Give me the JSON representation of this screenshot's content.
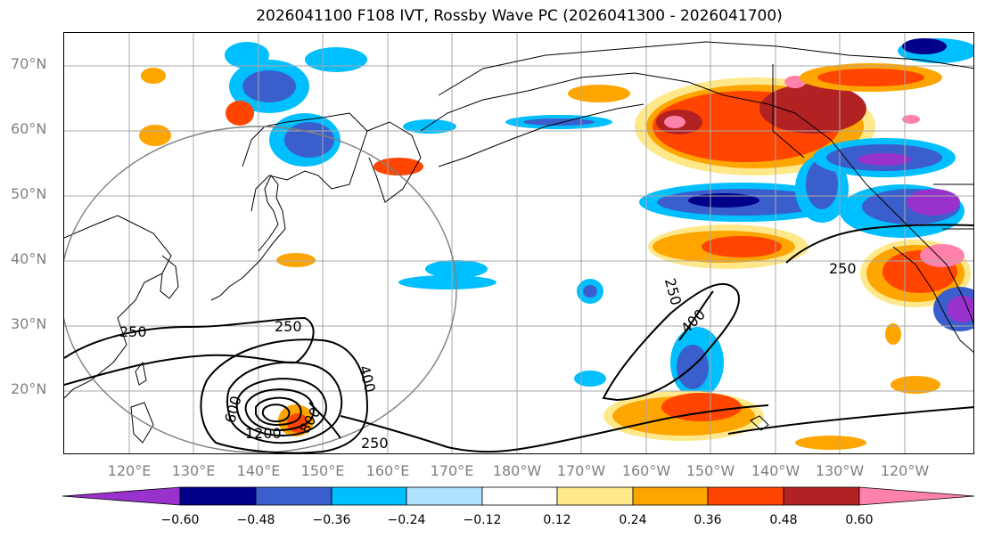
{
  "title": "2026041100 F108 IVT, Rossby Wave PC (2026041300 - 2026041700)",
  "map": {
    "projection": "PlateCarree",
    "lon_range_deg_east": [
      110,
      251
    ],
    "lat_range": [
      10,
      75
    ],
    "gridlines": true,
    "lat_tick_labels": [
      "70°N",
      "60°N",
      "50°N",
      "40°N",
      "30°N",
      "20°N"
    ],
    "lon_tick_labels": [
      "120°E",
      "130°E",
      "140°E",
      "150°E",
      "160°E",
      "170°E",
      "180°W",
      "170°W",
      "160°W",
      "150°W",
      "140°W",
      "130°W",
      "120°W"
    ],
    "coastline_color": "#000000",
    "grid_color": "#a9a9a9",
    "circle_color": "#808080"
  },
  "contours": {
    "field": "IVT",
    "color": "#000000",
    "labels": [
      "250",
      "250",
      "250",
      "250",
      "400",
      "400",
      "600",
      "800",
      "1200",
      "250"
    ]
  },
  "colorbar": {
    "extend": "both",
    "tick_labels": [
      "−0.60",
      "−0.48",
      "−0.36",
      "−0.24",
      "−0.12",
      "0.12",
      "0.24",
      "0.36",
      "0.48",
      "0.60"
    ],
    "colors": [
      "#9932cc",
      "#00008b",
      "#3a5fcd",
      "#00bfff",
      "#b0e2ff",
      "#ffffff",
      "#ffe88a",
      "#ffa500",
      "#ff4500",
      "#b22222",
      "#ff82ab"
    ]
  },
  "chart_data": {
    "type": "heatmap",
    "title": "2026041100 F108 IVT, Rossby Wave PC (2026041300 - 2026041700)",
    "variable": "Rossby Wave PC",
    "levels": [
      -0.6,
      -0.48,
      -0.36,
      -0.24,
      -0.12,
      0.12,
      0.24,
      0.36,
      0.48,
      0.6
    ],
    "contour_field": "IVT",
    "contour_levels": [
      250,
      400,
      600,
      800,
      1000,
      1200
    ],
    "xlim": [
      110,
      251
    ],
    "ylim": [
      10,
      75
    ],
    "grid": true
  }
}
